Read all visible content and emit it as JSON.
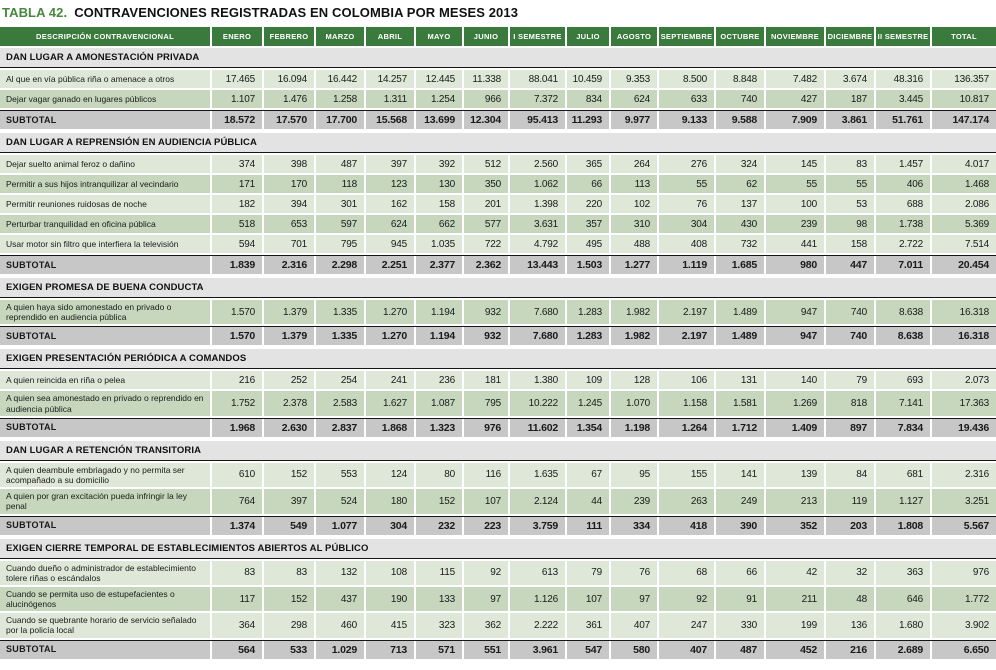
{
  "title": {
    "label": "TABLA 42.",
    "text": "CONTRAVENCIONES REGISTRADAS EN COLOMBIA POR MESES 2013"
  },
  "colors": {
    "header_green": "#3a7a3c",
    "title_green": "#46883c",
    "row_light": "#dfe7d8",
    "row_dark": "#c6d7bd",
    "subtotal_gray": "#c7c7c7",
    "section_band": "#e3e3e3"
  },
  "table": {
    "columns": [
      "DESCRIPCIÓN CONTRAVENCIONAL",
      "ENERO",
      "FEBRERO",
      "MARZO",
      "ABRIL",
      "MAYO",
      "JUNIO",
      "I SEMESTRE",
      "JULIO",
      "AGOSTO",
      "SEPTIEMBRE",
      "OCTUBRE",
      "NOVIEMBRE",
      "DICIEMBRE",
      "II SEMESTRE",
      "TOTAL"
    ],
    "subtotal_label": "SUBTOTAL",
    "sections": [
      {
        "header": "DAN LUGAR A AMONESTACIÓN PRIVADA",
        "rows": [
          {
            "label": "Al que en vía pública riña o amenace a otros",
            "values": [
              "17.465",
              "16.094",
              "16.442",
              "14.257",
              "12.445",
              "11.338",
              "88.041",
              "10.459",
              "9.353",
              "8.500",
              "8.848",
              "7.482",
              "3.674",
              "48.316",
              "136.357"
            ]
          },
          {
            "label": "Dejar vagar ganado en lugares públicos",
            "values": [
              "1.107",
              "1.476",
              "1.258",
              "1.311",
              "1.254",
              "966",
              "7.372",
              "834",
              "624",
              "633",
              "740",
              "427",
              "187",
              "3.445",
              "10.817"
            ]
          }
        ],
        "subtotal": [
          "18.572",
          "17.570",
          "17.700",
          "15.568",
          "13.699",
          "12.304",
          "95.413",
          "11.293",
          "9.977",
          "9.133",
          "9.588",
          "7.909",
          "3.861",
          "51.761",
          "147.174"
        ]
      },
      {
        "header": "DAN LUGAR A REPRENSIÓN EN AUDIENCIA PÚBLICA",
        "rows": [
          {
            "label": "Dejar suelto animal feroz o dañino",
            "values": [
              "374",
              "398",
              "487",
              "397",
              "392",
              "512",
              "2.560",
              "365",
              "264",
              "276",
              "324",
              "145",
              "83",
              "1.457",
              "4.017"
            ]
          },
          {
            "label": "Permitir a sus hijos intranquilizar al vecindario",
            "values": [
              "171",
              "170",
              "118",
              "123",
              "130",
              "350",
              "1.062",
              "66",
              "113",
              "55",
              "62",
              "55",
              "55",
              "406",
              "1.468"
            ]
          },
          {
            "label": "Permitir reuniones ruidosas de noche",
            "values": [
              "182",
              "394",
              "301",
              "162",
              "158",
              "201",
              "1.398",
              "220",
              "102",
              "76",
              "137",
              "100",
              "53",
              "688",
              "2.086"
            ]
          },
          {
            "label": "Perturbar tranquilidad en oficina pública",
            "values": [
              "518",
              "653",
              "597",
              "624",
              "662",
              "577",
              "3.631",
              "357",
              "310",
              "304",
              "430",
              "239",
              "98",
              "1.738",
              "5.369"
            ]
          },
          {
            "label": "Usar motor sin filtro que interfiera la televisión",
            "values": [
              "594",
              "701",
              "795",
              "945",
              "1.035",
              "722",
              "4.792",
              "495",
              "488",
              "408",
              "732",
              "441",
              "158",
              "2.722",
              "7.514"
            ]
          }
        ],
        "subtotal": [
          "1.839",
          "2.316",
          "2.298",
          "2.251",
          "2.377",
          "2.362",
          "13.443",
          "1.503",
          "1.277",
          "1.119",
          "1.685",
          "980",
          "447",
          "7.011",
          "20.454"
        ]
      },
      {
        "header": "EXIGEN PROMESA DE BUENA CONDUCTA",
        "rows": [
          {
            "label": "A quien haya sido amonestado en privado o reprendido en audiencia pública",
            "values": [
              "1.570",
              "1.379",
              "1.335",
              "1.270",
              "1.194",
              "932",
              "7.680",
              "1.283",
              "1.982",
              "2.197",
              "1.489",
              "947",
              "740",
              "8.638",
              "16.318"
            ]
          }
        ],
        "subtotal": [
          "1.570",
          "1.379",
          "1.335",
          "1.270",
          "1.194",
          "932",
          "7.680",
          "1.283",
          "1.982",
          "2.197",
          "1.489",
          "947",
          "740",
          "8.638",
          "16.318"
        ]
      },
      {
        "header": "EXIGEN PRESENTACIÓN PERIÓDICA A COMANDOS",
        "rows": [
          {
            "label": "A quien reincida en riña o pelea",
            "values": [
              "216",
              "252",
              "254",
              "241",
              "236",
              "181",
              "1.380",
              "109",
              "128",
              "106",
              "131",
              "140",
              "79",
              "693",
              "2.073"
            ]
          },
          {
            "label": "A quien sea amonestado en privado o reprendido en audiencia pública",
            "values": [
              "1.752",
              "2.378",
              "2.583",
              "1.627",
              "1.087",
              "795",
              "10.222",
              "1.245",
              "1.070",
              "1.158",
              "1.581",
              "1.269",
              "818",
              "7.141",
              "17.363"
            ]
          }
        ],
        "subtotal": [
          "1.968",
          "2.630",
          "2.837",
          "1.868",
          "1.323",
          "976",
          "11.602",
          "1.354",
          "1.198",
          "1.264",
          "1.712",
          "1.409",
          "897",
          "7.834",
          "19.436"
        ]
      },
      {
        "header": "DAN LUGAR A RETENCIÓN TRANSITORIA",
        "rows": [
          {
            "label": "A quien deambule embriagado y no permita ser acompañado a su domicilio",
            "values": [
              "610",
              "152",
              "553",
              "124",
              "80",
              "116",
              "1.635",
              "67",
              "95",
              "155",
              "141",
              "139",
              "84",
              "681",
              "2.316"
            ]
          },
          {
            "label": "A quien por gran excitación pueda infringir la ley penal",
            "values": [
              "764",
              "397",
              "524",
              "180",
              "152",
              "107",
              "2.124",
              "44",
              "239",
              "263",
              "249",
              "213",
              "119",
              "1.127",
              "3.251"
            ]
          }
        ],
        "subtotal": [
          "1.374",
          "549",
          "1.077",
          "304",
          "232",
          "223",
          "3.759",
          "111",
          "334",
          "418",
          "390",
          "352",
          "203",
          "1.808",
          "5.567"
        ]
      },
      {
        "header": "EXIGEN CIERRE TEMPORAL DE ESTABLECIMIENTOS ABIERTOS AL PÚBLICO",
        "rows": [
          {
            "label": "Cuando dueño o administrador de establecimiento tolere riñas o escándalos",
            "values": [
              "83",
              "83",
              "132",
              "108",
              "115",
              "92",
              "613",
              "79",
              "76",
              "68",
              "66",
              "42",
              "32",
              "363",
              "976"
            ]
          },
          {
            "label": "Cuando se permita uso de estupefacientes o alucinógenos",
            "values": [
              "117",
              "152",
              "437",
              "190",
              "133",
              "97",
              "1.126",
              "107",
              "97",
              "92",
              "91",
              "211",
              "48",
              "646",
              "1.772"
            ]
          },
          {
            "label": "Cuando se quebrante horario de servicio señalado por la policía local",
            "values": [
              "364",
              "298",
              "460",
              "415",
              "323",
              "362",
              "2.222",
              "361",
              "407",
              "247",
              "330",
              "199",
              "136",
              "1.680",
              "3.902"
            ]
          }
        ],
        "subtotal": [
          "564",
          "533",
          "1.029",
          "713",
          "571",
          "551",
          "3.961",
          "547",
          "580",
          "407",
          "487",
          "452",
          "216",
          "2.689",
          "6.650"
        ]
      }
    ]
  }
}
